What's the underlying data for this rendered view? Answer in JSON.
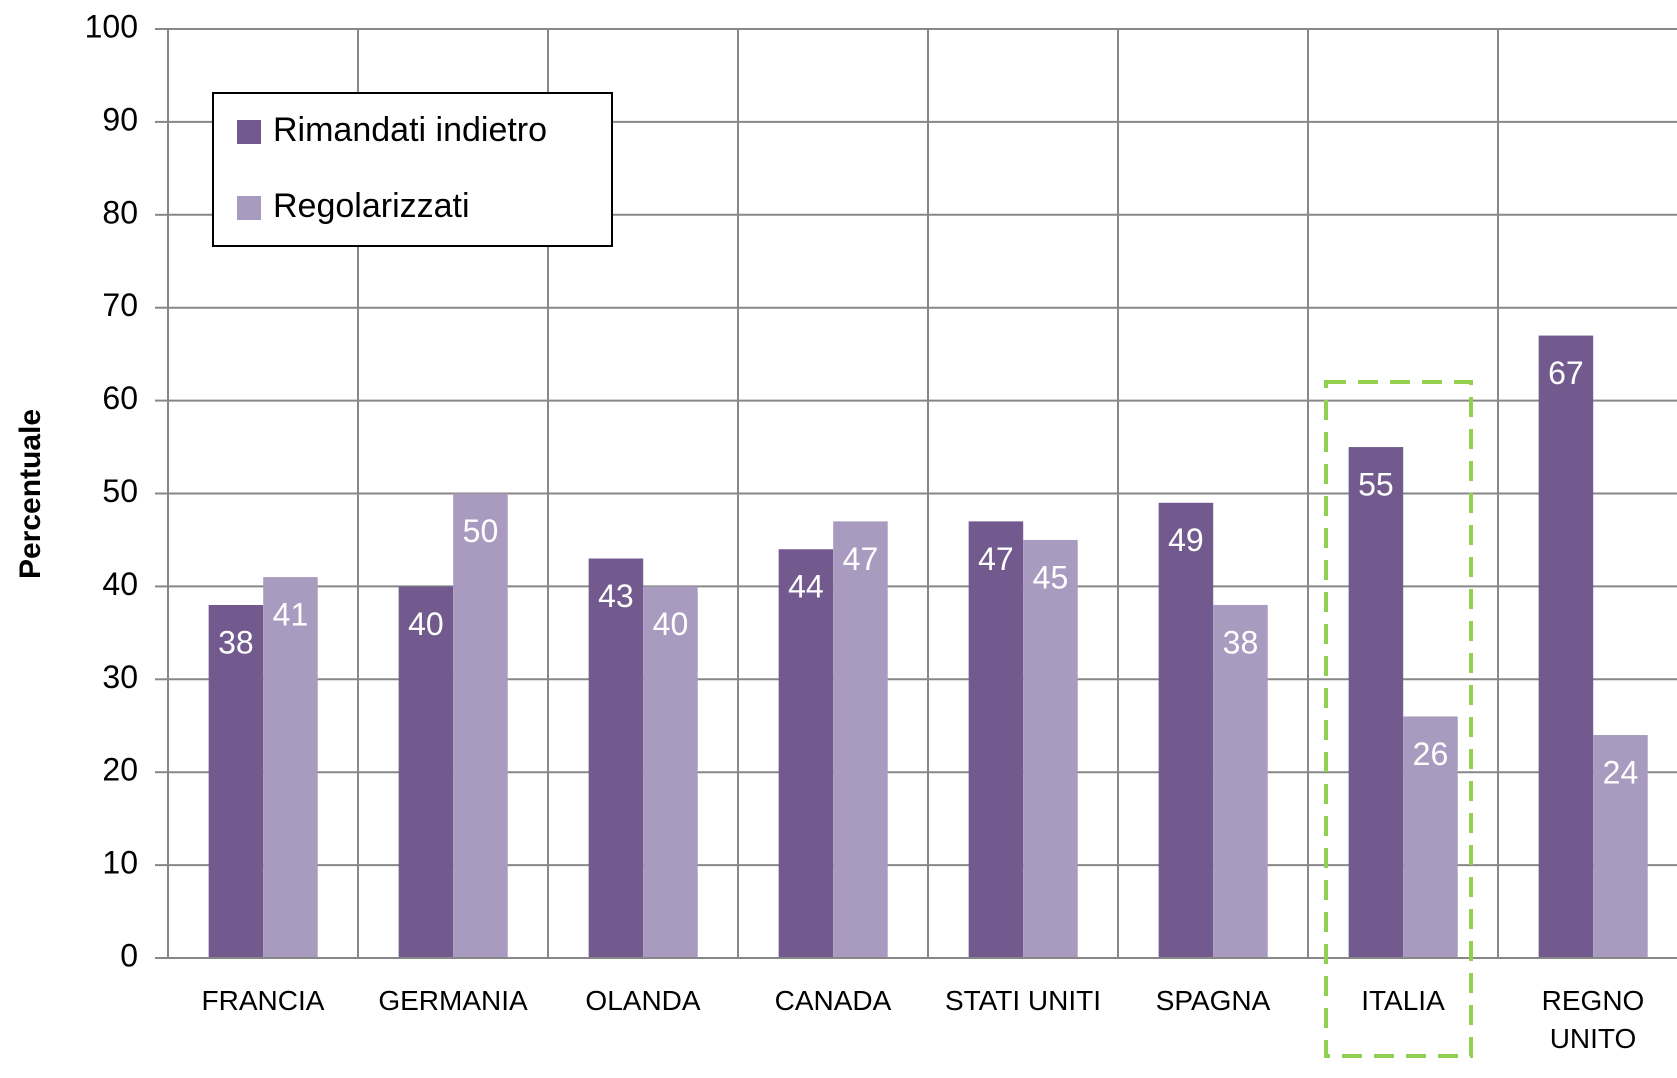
{
  "chart_data": {
    "type": "bar",
    "y_label": "Percentuale",
    "categories": [
      "FRANCIA",
      "GERMANIA",
      "OLANDA",
      "CANADA",
      "STATI UNITI",
      "SPAGNA",
      "ITALIA",
      "REGNO UNITO"
    ],
    "series": [
      {
        "name": "Rimandati indietro",
        "color": "#725a8e",
        "values": [
          38,
          40,
          43,
          44,
          47,
          49,
          55,
          67
        ]
      },
      {
        "name": "Regolarizzati",
        "color": "#a99bbf",
        "values": [
          41,
          50,
          40,
          47,
          45,
          38,
          26,
          24
        ]
      }
    ],
    "ylim": [
      0,
      100
    ],
    "yticks": [
      0,
      10,
      20,
      30,
      40,
      50,
      60,
      70,
      80,
      90,
      100
    ],
    "grid": true,
    "legend": "upper left"
  }
}
